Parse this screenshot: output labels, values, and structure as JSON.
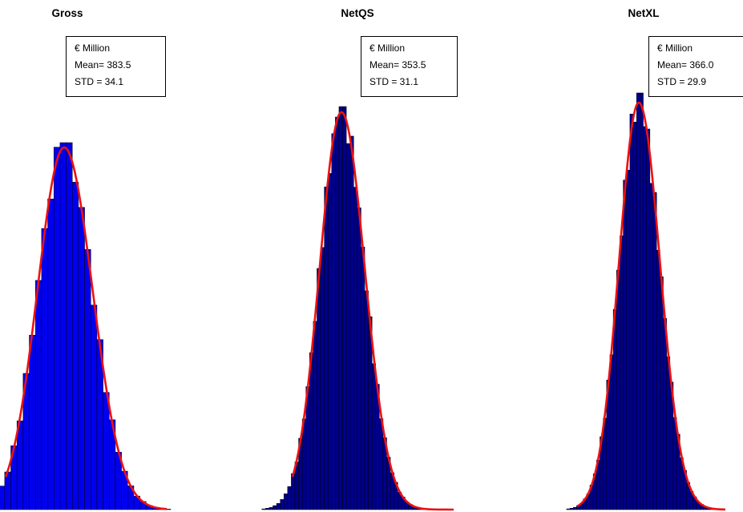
{
  "chart_data": [
    {
      "type": "histogram",
      "title": "Gross",
      "annotation": {
        "unit": "€ Million",
        "mean_label": "Mean= 383.5",
        "std_label": "STD = 34.1"
      },
      "mean": 383.5,
      "std": 34.1,
      "bar_color": "#0000ee",
      "fit_color": "#ee1111",
      "axes_visible": false,
      "grid": false
    },
    {
      "type": "histogram",
      "title": "NetQS",
      "annotation": {
        "unit": "€ Million",
        "mean_label": "Mean= 353.5",
        "std_label": "STD = 31.1"
      },
      "mean": 353.5,
      "std": 31.1,
      "bar_color": "#00008b",
      "fit_color": "#ee1111",
      "axes_visible": false,
      "grid": false
    },
    {
      "type": "histogram",
      "title": "NetXL",
      "annotation": {
        "unit": "€ Million",
        "mean_label": "Mean= 366.0",
        "std_label": "STD = 29.9"
      },
      "mean": 366.0,
      "std": 29.9,
      "bar_color": "#00008b",
      "fit_color": "#ee1111",
      "axes_visible": false,
      "grid": false
    }
  ]
}
